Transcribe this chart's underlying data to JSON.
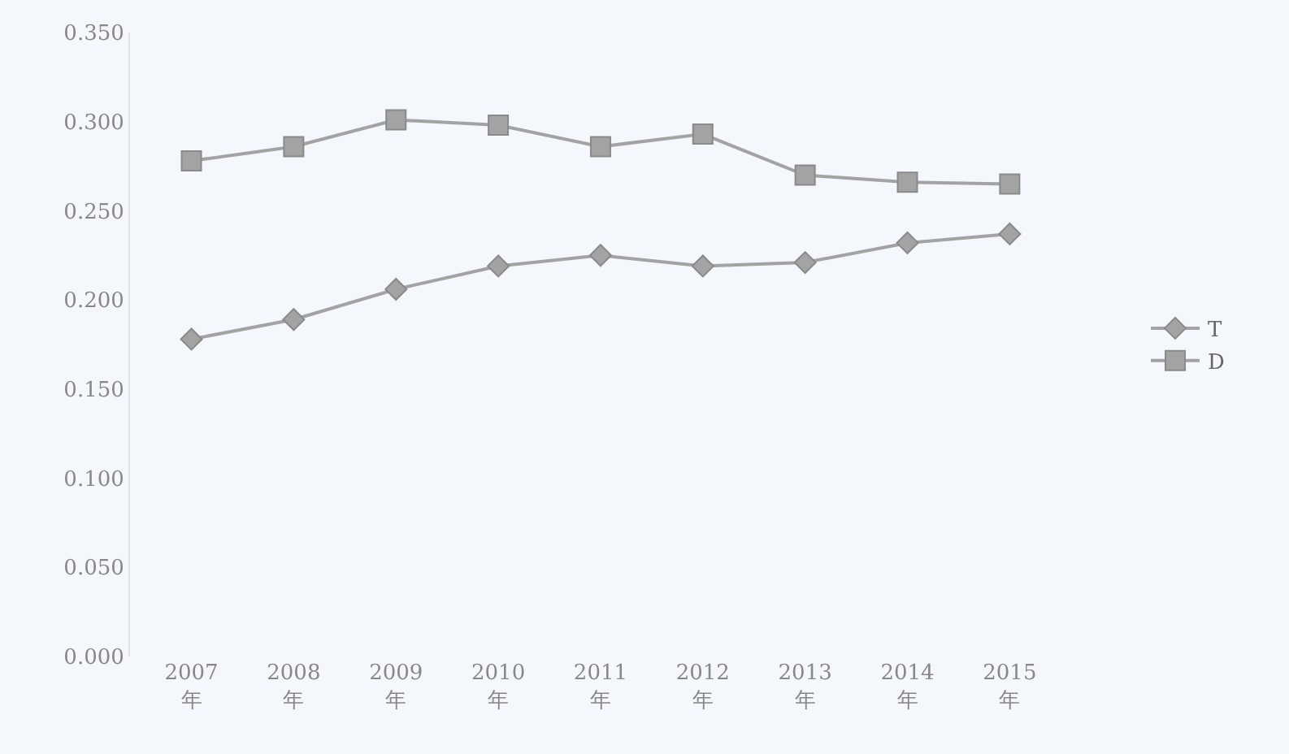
{
  "chart_data": {
    "type": "line",
    "categories": [
      "2007\n年",
      "2008\n年",
      "2009\n年",
      "2010\n年",
      "2011\n年",
      "2012\n年",
      "2013\n年",
      "2014\n年",
      "2015\n年"
    ],
    "series": [
      {
        "name": "T",
        "color": "#a3a3a3",
        "marker": "diamond",
        "values": [
          0.178,
          0.189,
          0.206,
          0.219,
          0.225,
          0.219,
          0.221,
          0.232,
          0.237
        ]
      },
      {
        "name": "D",
        "color": "#a3a3a3",
        "marker": "square",
        "values": [
          0.278,
          0.286,
          0.301,
          0.298,
          0.286,
          0.293,
          0.27,
          0.266,
          0.265
        ]
      }
    ],
    "ylim": [
      0,
      0.35
    ],
    "yticks": [
      {
        "value": 0,
        "label": "0.000"
      },
      {
        "value": 0.05,
        "label": "0.050"
      },
      {
        "value": 0.1,
        "label": "0.100"
      },
      {
        "value": 0.15,
        "label": "0.150"
      },
      {
        "value": 0.2,
        "label": "0.200"
      },
      {
        "value": 0.25,
        "label": "0.250"
      },
      {
        "value": 0.3,
        "label": "0.300"
      },
      {
        "value": 0.35,
        "label": "0.350"
      }
    ],
    "legend": "right",
    "grid": false
  }
}
